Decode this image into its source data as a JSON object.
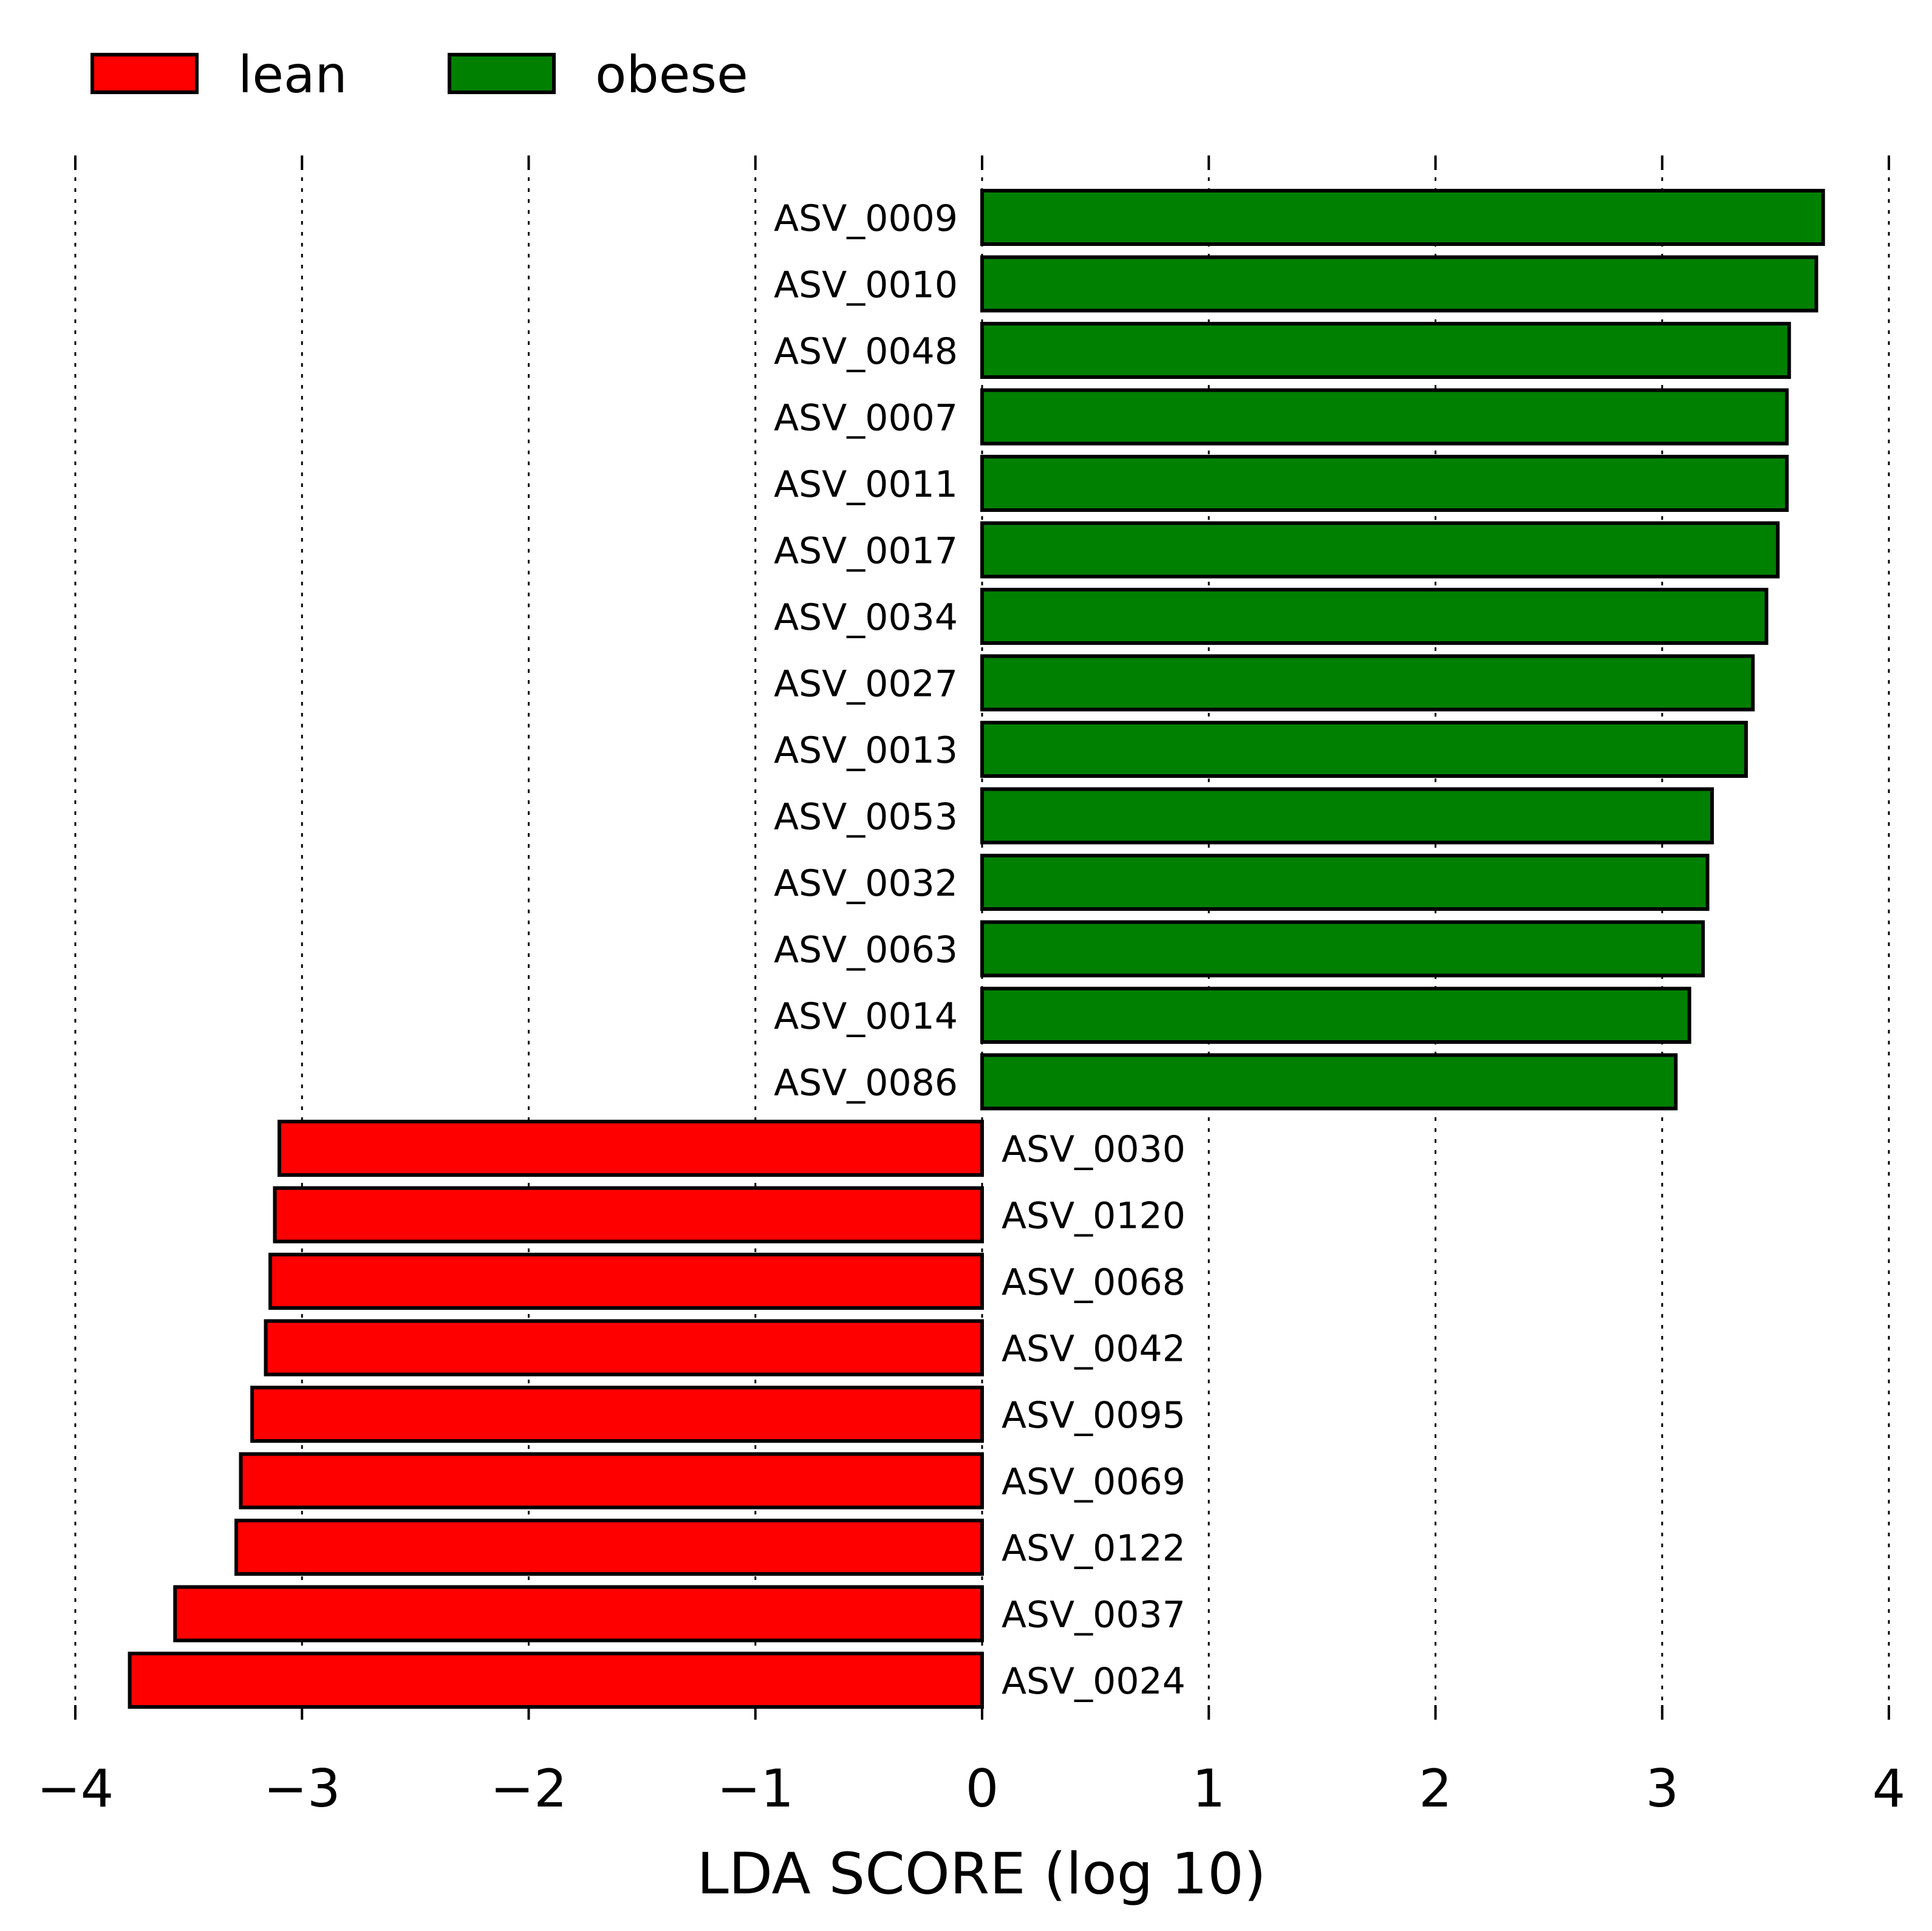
{
  "chart_data": {
    "type": "bar",
    "orientation": "horizontal",
    "title": "",
    "xlabel": "LDA SCORE (log 10)",
    "ylabel": "",
    "xlim": [
      -4,
      4
    ],
    "xticks": [
      -4,
      -3,
      -2,
      -1,
      0,
      1,
      2,
      3,
      4
    ],
    "xtick_labels": [
      "−4",
      "−3",
      "−2",
      "−1",
      "0",
      "1",
      "2",
      "3",
      "4"
    ],
    "grid": true,
    "legend_position": "top-left",
    "legend": [
      {
        "name": "lean",
        "color": "#ff0000"
      },
      {
        "name": "obese",
        "color": "#008000"
      }
    ],
    "features": [
      {
        "label": "ASV_0009",
        "value": 3.71,
        "group": "obese"
      },
      {
        "label": "ASV_0010",
        "value": 3.68,
        "group": "obese"
      },
      {
        "label": "ASV_0048",
        "value": 3.56,
        "group": "obese"
      },
      {
        "label": "ASV_0007",
        "value": 3.55,
        "group": "obese"
      },
      {
        "label": "ASV_0011",
        "value": 3.55,
        "group": "obese"
      },
      {
        "label": "ASV_0017",
        "value": 3.51,
        "group": "obese"
      },
      {
        "label": "ASV_0034",
        "value": 3.46,
        "group": "obese"
      },
      {
        "label": "ASV_0027",
        "value": 3.4,
        "group": "obese"
      },
      {
        "label": "ASV_0013",
        "value": 3.37,
        "group": "obese"
      },
      {
        "label": "ASV_0053",
        "value": 3.22,
        "group": "obese"
      },
      {
        "label": "ASV_0032",
        "value": 3.2,
        "group": "obese"
      },
      {
        "label": "ASV_0063",
        "value": 3.18,
        "group": "obese"
      },
      {
        "label": "ASV_0014",
        "value": 3.12,
        "group": "obese"
      },
      {
        "label": "ASV_0086",
        "value": 3.06,
        "group": "obese"
      },
      {
        "label": "ASV_0030",
        "value": -3.1,
        "group": "lean"
      },
      {
        "label": "ASV_0120",
        "value": -3.12,
        "group": "lean"
      },
      {
        "label": "ASV_0068",
        "value": -3.14,
        "group": "lean"
      },
      {
        "label": "ASV_0042",
        "value": -3.16,
        "group": "lean"
      },
      {
        "label": "ASV_0095",
        "value": -3.22,
        "group": "lean"
      },
      {
        "label": "ASV_0069",
        "value": -3.27,
        "group": "lean"
      },
      {
        "label": "ASV_0122",
        "value": -3.29,
        "group": "lean"
      },
      {
        "label": "ASV_0037",
        "value": -3.56,
        "group": "lean"
      },
      {
        "label": "ASV_0024",
        "value": -3.76,
        "group": "lean"
      }
    ]
  }
}
